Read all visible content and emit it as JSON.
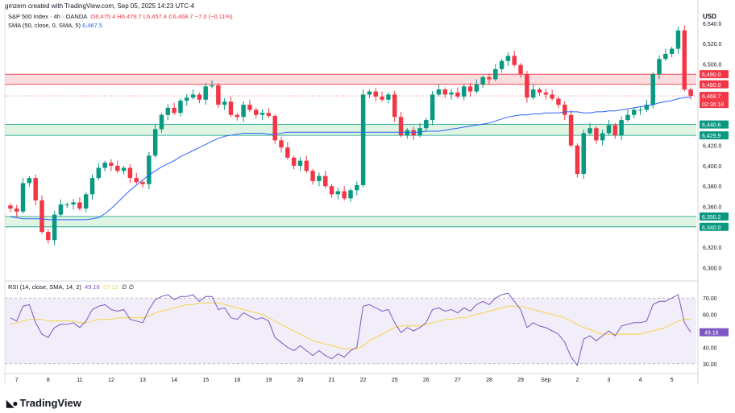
{
  "header": {
    "note": "gmzern created with TradingView.com, Sep 05, 2025 14:23 UTC-4",
    "symbol": "S&P 500 Index · 4h · OANDA",
    "ohlc": "O6,475.4 H6,476.7 L6,457.4 C6,468.7 −7.0 (−0.11%)",
    "sma_label": "SMA (50, close, 0, SMA, 5)",
    "sma_value": "6,467.5",
    "currency": "USD"
  },
  "rsi_legend": {
    "label": "RSI (14, close, SMA, 14, 2)",
    "rsi_value": "49.16",
    "ma_value": "57.12",
    "extra": "∅ ∅"
  },
  "footer": {
    "brand": "TradingView"
  },
  "colors": {
    "up": "#089981",
    "down": "#f23645",
    "sma": "#2962ff",
    "rsi": "#7e57c2",
    "rsi_ma": "#f5d24a",
    "green_zone": "#d9f2de",
    "red_zone": "#fad7d9"
  },
  "chart_data": {
    "type": "candlestick",
    "title": "S&P 500 Index · 4h · OANDA",
    "y_range": [
      6290,
      6555
    ],
    "y_ticks": [
      6300,
      6320,
      6340,
      6360,
      6380,
      6400,
      6420,
      6440,
      6460,
      6480,
      6500,
      6520,
      6540
    ],
    "y_tick_labels": [
      "6,300.0",
      "6,320.0",
      "6,340.0",
      "6,360.0",
      "6,380.0",
      "6,400.0",
      "6,420.0",
      "6,440.0",
      "6,460.0",
      "6,480.0",
      "6,500.0",
      "6,520.0",
      "6,540.0"
    ],
    "x_tick_labels": [
      "7",
      "8",
      "11",
      "12",
      "13",
      "14",
      "15",
      "18",
      "19",
      "20",
      "21",
      "22",
      "25",
      "26",
      "27",
      "28",
      "29",
      "Sep",
      "2",
      "3",
      "4",
      "5"
    ],
    "x_tick_bars": [
      1,
      6,
      11,
      16,
      21,
      26,
      31,
      36,
      41,
      46,
      51,
      56,
      61,
      66,
      71,
      76,
      81,
      85,
      90,
      95,
      100,
      105
    ],
    "bars_per_day": 5,
    "zones": [
      {
        "type": "resistance",
        "from": 6480.0,
        "to": 6490.0
      },
      {
        "type": "support",
        "from": 6429.9,
        "to": 6440.6
      },
      {
        "type": "support",
        "from": 6340.0,
        "to": 6350.2
      }
    ],
    "price_labels": [
      {
        "value": 6490.0,
        "text": "6,490.0",
        "color": "#f23645"
      },
      {
        "value": 6480.0,
        "text": "6,480.0",
        "color": "#f23645"
      },
      {
        "value": 6468.7,
        "text": "6,468.7",
        "color": "#f23645"
      },
      {
        "value": 6440.6,
        "text": "6,440.6",
        "color": "#089981"
      },
      {
        "value": 6429.9,
        "text": "6,429.9",
        "color": "#089981"
      },
      {
        "value": 6350.2,
        "text": "6,350.2",
        "color": "#089981"
      },
      {
        "value": 6340.0,
        "text": "6,340.0",
        "color": "#089981"
      }
    ],
    "countdown": "02:36:18",
    "current_price": 6468.7,
    "closes": [
      6358,
      6355,
      6383,
      6388,
      6366,
      6335,
      6327,
      6352,
      6362,
      6362,
      6364,
      6358,
      6372,
      6388,
      6398,
      6403,
      6400,
      6395,
      6398,
      6388,
      6384,
      6382,
      6410,
      6436,
      6450,
      6457,
      6452,
      6464,
      6467,
      6470,
      6465,
      6478,
      6479,
      6460,
      6463,
      6450,
      6448,
      6460,
      6455,
      6450,
      6452,
      6449,
      6425,
      6418,
      6408,
      6400,
      6405,
      6395,
      6385,
      6390,
      6380,
      6372,
      6375,
      6368,
      6376,
      6381,
      6470,
      6473,
      6468,
      6465,
      6470,
      6448,
      6430,
      6435,
      6430,
      6437,
      6445,
      6470,
      6475,
      6470,
      6472,
      6468,
      6478,
      6473,
      6480,
      6487,
      6485,
      6495,
      6503,
      6508,
      6499,
      6490,
      6467,
      6475,
      6472,
      6470,
      6466,
      6460,
      6450,
      6420,
      6392,
      6432,
      6437,
      6425,
      6432,
      6440,
      6430,
      6445,
      6450,
      6455,
      6455,
      6460,
      6490,
      6505,
      6510,
      6515,
      6533,
      6475,
      6468.7
    ],
    "sma": [
      6350,
      6349,
      6348,
      6348,
      6348,
      6348,
      6347,
      6347,
      6347,
      6347,
      6347,
      6347,
      6347,
      6348,
      6349,
      6353,
      6358,
      6364,
      6370,
      6376,
      6381,
      6386,
      6391,
      6395,
      6399,
      6402,
      6405,
      6409,
      6412,
      6415,
      6418,
      6421,
      6424,
      6427,
      6429,
      6430,
      6431,
      6432,
      6432,
      6432,
      6432,
      6431,
      6431,
      6432,
      6433,
      6433,
      6433,
      6433,
      6433,
      6433,
      6433,
      6433,
      6433,
      6433,
      6433,
      6433,
      6433,
      6433,
      6433,
      6433,
      6433,
      6433,
      6433,
      6433,
      6433,
      6433,
      6434,
      6434,
      6434,
      6435,
      6436,
      6437,
      6438,
      6439,
      6440,
      6441,
      6442,
      6444,
      6446,
      6448,
      6449,
      6450,
      6450,
      6451,
      6451,
      6452,
      6452,
      6452,
      6453,
      6453,
      6453,
      6452,
      6452,
      6453,
      6453,
      6454,
      6454,
      6455,
      6456,
      6457,
      6458,
      6459,
      6460,
      6462,
      6463,
      6464,
      6466,
      6467,
      6467.5
    ]
  },
  "rsi_data": {
    "y_range": [
      25,
      75
    ],
    "y_ticks": [
      30,
      40,
      50,
      60,
      70
    ],
    "y_tick_labels": [
      "30.00",
      "40.00",
      "50.00",
      "60.00",
      "70.00"
    ],
    "bands": [
      30,
      70
    ],
    "rsi": [
      58,
      56,
      65,
      66,
      55,
      48,
      46,
      52,
      54,
      54,
      55,
      52,
      56,
      63,
      65,
      66,
      63,
      62,
      63,
      57,
      56,
      55,
      63,
      69,
      71,
      72,
      69,
      71,
      71,
      72,
      68,
      71,
      71,
      63,
      64,
      58,
      57,
      61,
      59,
      57,
      58,
      56,
      46,
      43,
      40,
      38,
      41,
      38,
      35,
      38,
      35,
      33,
      36,
      34,
      38,
      40,
      65,
      66,
      64,
      62,
      63,
      55,
      49,
      52,
      50,
      52,
      55,
      63,
      64,
      62,
      63,
      61,
      64,
      62,
      66,
      68,
      66,
      70,
      72,
      73,
      68,
      63,
      52,
      55,
      53,
      52,
      50,
      48,
      43,
      34,
      29,
      45,
      47,
      44,
      47,
      50,
      47,
      53,
      54,
      55,
      55,
      56,
      66,
      68,
      68,
      70,
      72,
      55,
      49.16
    ],
    "rsi_ma": [
      54,
      55,
      56,
      57,
      57,
      57,
      56,
      56,
      56,
      56,
      56,
      55,
      55,
      56,
      57,
      57,
      57,
      58,
      58,
      58,
      58,
      58,
      59,
      61,
      62,
      63,
      64,
      65,
      66,
      66,
      67,
      67,
      67,
      67,
      66,
      65,
      64,
      63,
      62,
      61,
      60,
      58,
      56,
      54,
      52,
      50,
      48,
      46,
      44,
      43,
      42,
      41,
      40,
      39,
      39,
      39,
      41,
      44,
      46,
      48,
      50,
      52,
      53,
      53,
      53,
      53,
      54,
      55,
      56,
      57,
      57,
      58,
      58,
      59,
      60,
      61,
      62,
      63,
      64,
      65,
      65,
      65,
      64,
      63,
      62,
      61,
      60,
      59,
      58,
      56,
      54,
      52,
      51,
      49,
      48,
      48,
      48,
      48,
      48,
      48,
      48,
      49,
      50,
      51,
      52,
      54,
      56,
      57,
      57.12
    ]
  }
}
